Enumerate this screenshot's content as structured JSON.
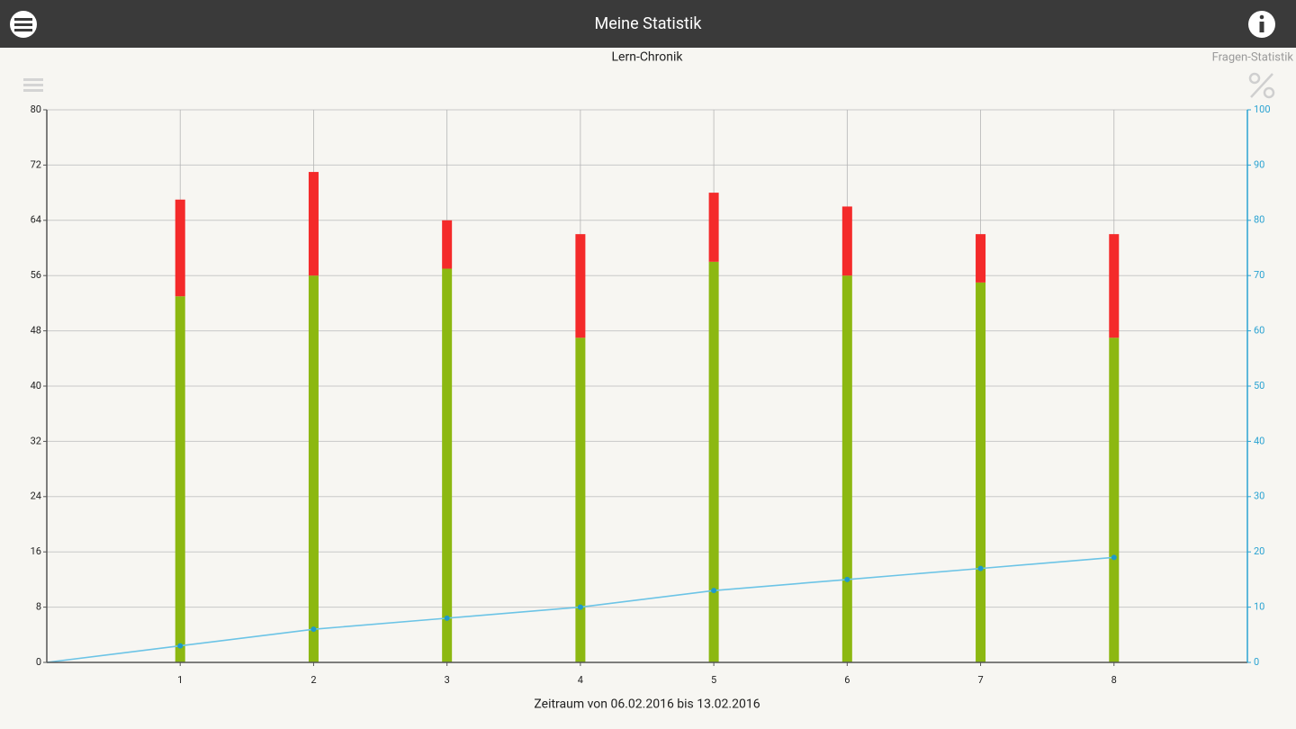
{
  "header": {
    "title": "Meine Statistik"
  },
  "tab_label": "Fragen-Statistik",
  "chart_data": {
    "type": "bar",
    "title": "Lern-Chronik",
    "x_label": "Zeitraum von 06.02.2016 bis 13.02.2016",
    "stacked": true,
    "x": [
      0,
      1,
      2,
      3,
      4,
      5,
      6,
      7,
      8
    ],
    "xlim": [
      0,
      9
    ],
    "xticks": [
      1,
      2,
      3,
      4,
      5,
      6,
      7,
      8
    ],
    "ylim": [
      0,
      80
    ],
    "yticks": [
      0,
      8,
      16,
      24,
      32,
      40,
      48,
      56,
      64,
      72,
      80
    ],
    "y2lim": [
      0,
      100
    ],
    "y2ticks": [
      0,
      10,
      20,
      30,
      40,
      50,
      60,
      70,
      80,
      90,
      100
    ],
    "y2_color": "#2ba3d2",
    "grid": true,
    "series": [
      {
        "color": "#8cb811",
        "values": [
          null,
          53,
          56,
          57,
          47,
          58,
          56,
          55,
          47
        ]
      },
      {
        "color": "#f42a2a",
        "values": [
          null,
          14,
          15,
          7,
          15,
          10,
          10,
          7,
          15
        ]
      },
      {
        "type": "line",
        "axis": "y2",
        "color": "#6cc4e6",
        "marker_color": "#1e9ac9",
        "values": [
          0,
          3,
          6,
          8,
          10,
          13,
          15,
          17,
          19
        ]
      }
    ]
  }
}
